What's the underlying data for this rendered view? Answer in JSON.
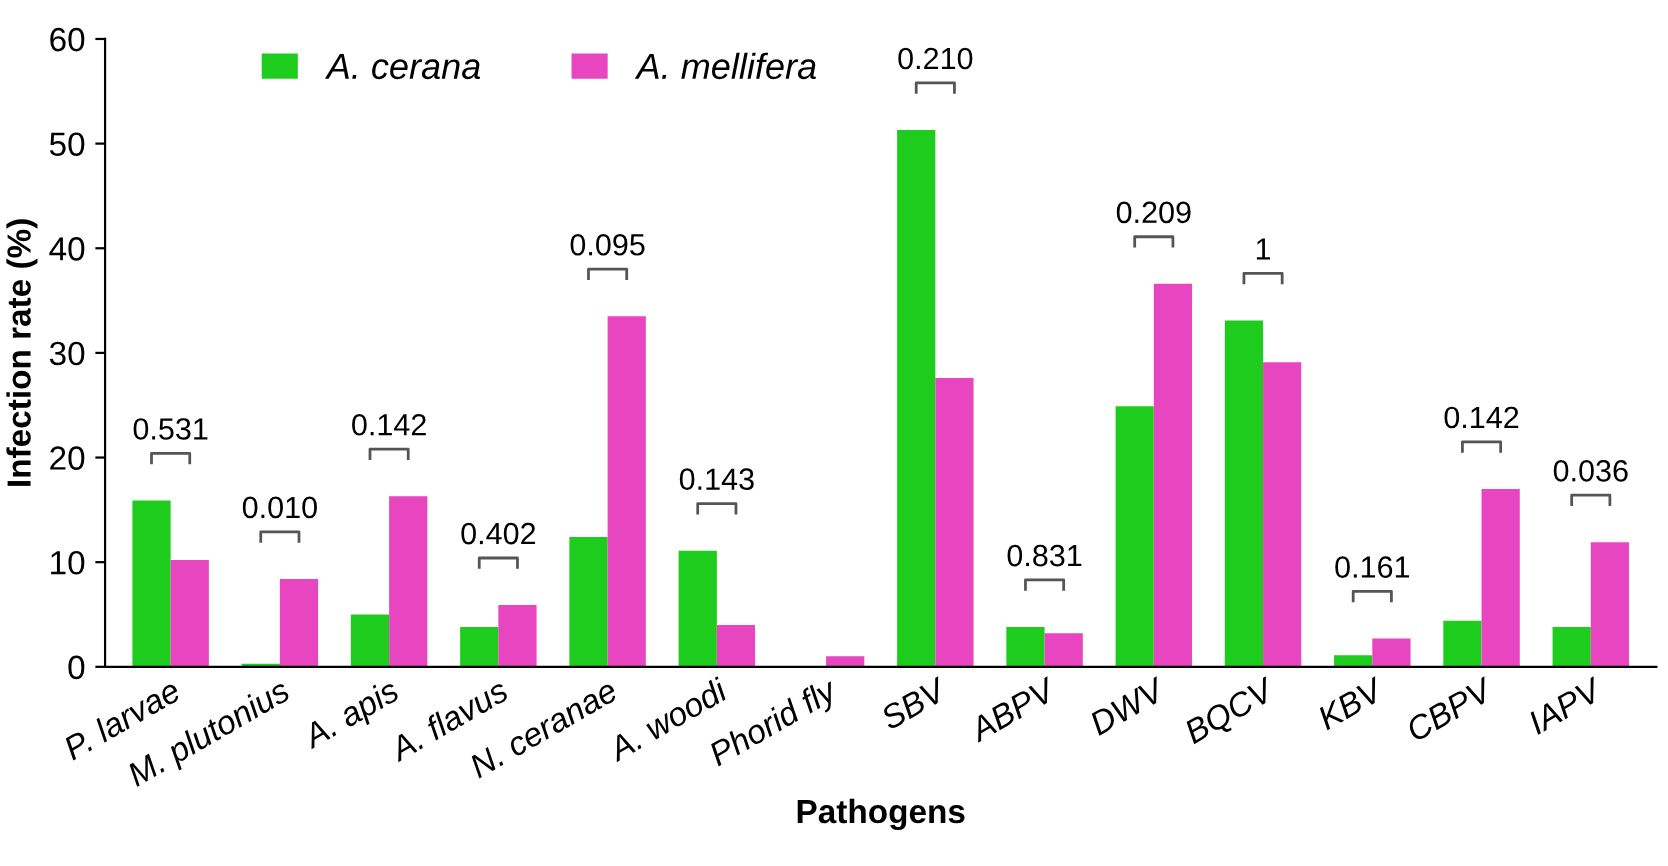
{
  "chart_data": {
    "type": "bar",
    "xlabel": "Pathogens",
    "ylabel": "Infection rate (%)",
    "categories": [
      "P. larvae",
      "M. plutonius",
      "A. apis",
      "A. flavus",
      "N. ceranae",
      "A. woodi",
      "Phorid fly",
      "SBV",
      "ABPV",
      "DWV",
      "BQCV",
      "KBV",
      "CBPV",
      "IAPV"
    ],
    "series": [
      {
        "name": "A. cerana",
        "color": "#1ecc1e",
        "values": [
          15.9,
          0.3,
          5.0,
          3.8,
          12.4,
          11.1,
          0,
          51.3,
          3.8,
          24.9,
          33.1,
          1.1,
          4.4,
          3.8
        ]
      },
      {
        "name": "A. mellifera",
        "color": "#e845c0",
        "values": [
          10.2,
          8.4,
          16.3,
          5.9,
          33.5,
          4.0,
          1.0,
          27.6,
          3.2,
          36.6,
          29.1,
          2.7,
          17.0,
          11.9
        ]
      }
    ],
    "ylim": [
      0,
      60
    ],
    "yticks": [
      0,
      10,
      20,
      30,
      40,
      50,
      60
    ],
    "grid": false,
    "legend": "top",
    "annotations": [
      "0.531",
      "0.010",
      "0.142",
      "0.402",
      "0.095",
      "0.143",
      "0.210",
      "0.831",
      "0.209",
      "1",
      "0.161",
      "0.142",
      "0.036"
    ]
  }
}
